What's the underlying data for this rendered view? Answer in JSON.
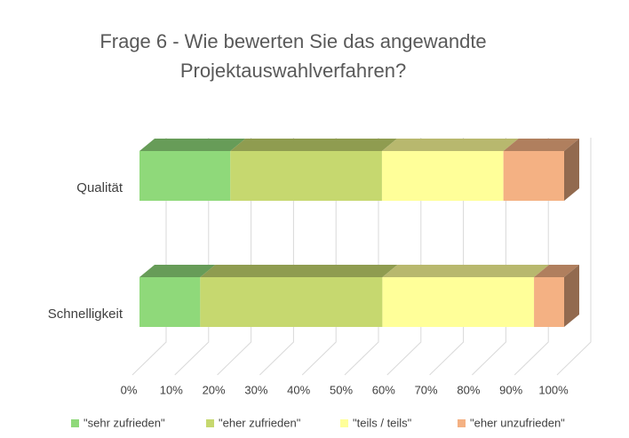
{
  "chart_data": {
    "type": "bar3d_stacked_horizontal",
    "title": "Frage 6 - Wie bewerten Sie das angewandte Projektauswahlverfahren?",
    "categories": [
      "Qualität",
      "Schnelligkeit"
    ],
    "series": [
      {
        "name": "\"sehr zufrieden\"",
        "color": "#8fd97a",
        "values": [
          21.4,
          14.3
        ]
      },
      {
        "name": "\"eher zufrieden\"",
        "color": "#c6d86f",
        "values": [
          35.7,
          42.9
        ]
      },
      {
        "name": "\"teils / teils\"",
        "color": "#ffff99",
        "values": [
          28.6,
          35.7
        ]
      },
      {
        "name": "\"eher unzufrieden\"",
        "color": "#f4b183",
        "values": [
          14.3,
          7.1
        ]
      }
    ],
    "xlim": [
      0,
      100
    ],
    "xticks": [
      {
        "value": 0,
        "label": "0%"
      },
      {
        "value": 10,
        "label": "10%"
      },
      {
        "value": 20,
        "label": "20%"
      },
      {
        "value": 30,
        "label": "30%"
      },
      {
        "value": 40,
        "label": "40%"
      },
      {
        "value": 50,
        "label": "50%"
      },
      {
        "value": 60,
        "label": "60%"
      },
      {
        "value": 70,
        "label": "70%"
      },
      {
        "value": 80,
        "label": "80%"
      },
      {
        "value": 90,
        "label": "90%"
      },
      {
        "value": 100,
        "label": "100%"
      }
    ],
    "grid": true,
    "legend": "bottom"
  }
}
